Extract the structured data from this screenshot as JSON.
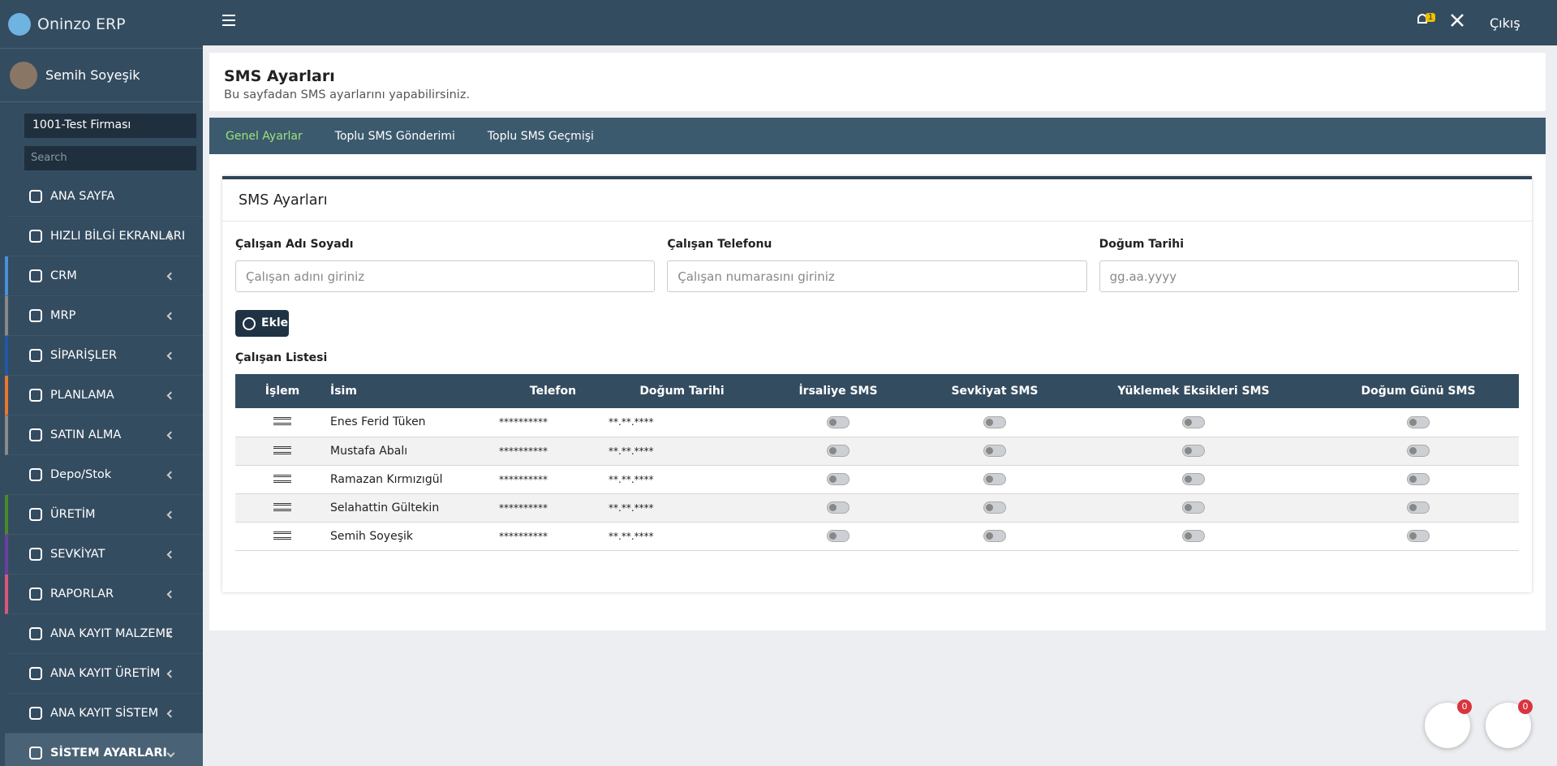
{
  "brand": "Oninzo ERP",
  "user": "Semih Soyeşik",
  "company": "1001-Test Firması",
  "search_placeholder": "Search",
  "menu": [
    "ANA SAYFA",
    "HIZLI BİLGİ EKRANLARI",
    "CRM",
    "MRP",
    "SİPARİŞLER",
    "PLANLAMA",
    "SATIN ALMA",
    "Depo/Stok",
    "ÜRETİM",
    "SEVKİYAT",
    "RAPORLAR",
    "ANA KAYIT MALZEME",
    "ANA KAYIT ÜRETİM",
    "ANA KAYIT SİSTEM",
    "SİSTEM AYARLARI"
  ],
  "topbar": {
    "notification_count": "1",
    "logout": "Çıkış"
  },
  "header": {
    "title": "SMS Ayarları",
    "subtitle": "Bu sayfadan SMS ayarlarını yapabilirsiniz."
  },
  "tabs": [
    "Genel Ayarlar",
    "Toplu SMS Gönderimi",
    "Toplu SMS Geçmişi"
  ],
  "card": {
    "title": "SMS Ayarları",
    "fields": [
      {
        "label": "Çalışan Adı Soyadı",
        "placeholder": "Çalışan adını giriniz"
      },
      {
        "label": "Çalışan Telefonu",
        "placeholder": "Çalışan numarasını giriniz"
      },
      {
        "label": "Doğum Tarihi",
        "placeholder": "gg.aa.yyyy"
      }
    ],
    "add_button": "Ekle",
    "list_title": "Çalışan Listesi"
  },
  "table": {
    "columns": [
      "İşlem",
      "İsim",
      "Telefon",
      "Doğum Tarihi",
      "İrsaliye SMS",
      "Sevkiyat SMS",
      "Yüklemek Eksikleri SMS",
      "Doğum Günü SMS"
    ],
    "rows": [
      [
        "Enes Ferid Tüken",
        "**********",
        "**.**.****"
      ],
      [
        "Mustafa Abalı",
        "**********",
        "**.**.****"
      ],
      [
        "Ramazan Kırmızıgül",
        "**********",
        "**.**.****"
      ],
      [
        "Selahattin Gültekin",
        "**********",
        "**.**.****"
      ],
      [
        "Semih Soyeşik",
        "**********",
        "**.**.****"
      ]
    ]
  },
  "chat_badges": [
    "0",
    "0"
  ]
}
